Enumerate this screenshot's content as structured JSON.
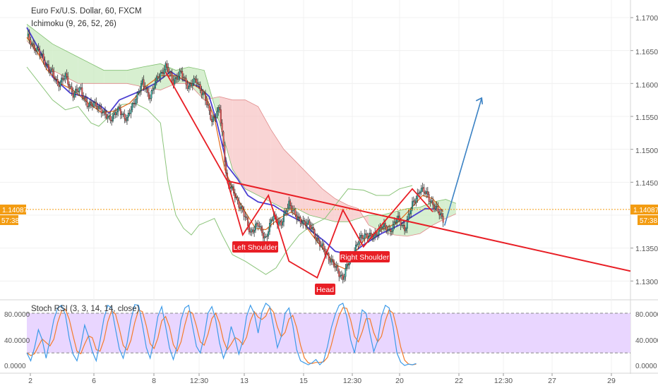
{
  "header": {
    "title": "Euro Fx/U.S. Dollar, 60, FXCM",
    "indicator": "Ichimoku (9, 26, 52, 26)"
  },
  "price_axis": {
    "ticks": [
      "1.17000",
      "1.16500",
      "1.16000",
      "1.15500",
      "1.15000",
      "1.14500",
      "1.13500",
      "1.13000"
    ],
    "current_price": "1.14087",
    "countdown": "57:38"
  },
  "x_axis": {
    "ticks": [
      "2",
      "6",
      "8",
      "12:30",
      "13",
      "15",
      "12:30",
      "20",
      "22",
      "12:30",
      "27",
      "29"
    ]
  },
  "annotations": {
    "left_shoulder": "Left Shoulder",
    "head": "Head",
    "right_shoulder": "Right Shoulder"
  },
  "oscillator": {
    "title": "Stoch RSI (3, 3, 14, 14, close)",
    "ticks": [
      "80.0000",
      "40.0000",
      "0.0000"
    ]
  },
  "colors": {
    "bull": "#26a69a",
    "bear": "#ef5350",
    "trend": "#e81e25",
    "arrow": "#3b82c4",
    "kijun": "#4b3fd1",
    "tenkan": "#e36a1a",
    "cloud_bear": "#f7c5c5",
    "cloud_bull": "#c9e9c0",
    "price_line": "#f39c12",
    "band": "#e9d6ff"
  },
  "chart_data": {
    "type": "candlestick",
    "instrument": "Euro Fx/U.S. Dollar",
    "timeframe": "60",
    "source": "FXCM",
    "ylim": [
      1.1275,
      1.1725
    ],
    "close_path": [
      [
        0,
        1.1672
      ],
      [
        6,
        1.1655
      ],
      [
        12,
        1.164
      ],
      [
        18,
        1.162
      ],
      [
        24,
        1.16
      ],
      [
        30,
        1.161
      ],
      [
        36,
        1.1585
      ],
      [
        42,
        1.159
      ],
      [
        48,
        1.1565
      ],
      [
        54,
        1.157
      ],
      [
        60,
        1.1552
      ],
      [
        66,
        1.1548
      ],
      [
        72,
        1.156
      ],
      [
        78,
        1.1545
      ],
      [
        84,
        1.1575
      ],
      [
        90,
        1.16
      ],
      [
        96,
        1.158
      ],
      [
        102,
        1.161
      ],
      [
        108,
        1.1625
      ],
      [
        114,
        1.1605
      ],
      [
        120,
        1.1615
      ],
      [
        126,
        1.1595
      ],
      [
        132,
        1.1605
      ],
      [
        138,
        1.158
      ],
      [
        144,
        1.1545
      ],
      [
        150,
        1.156
      ],
      [
        156,
        1.145
      ],
      [
        162,
        1.143
      ],
      [
        168,
        1.1405
      ],
      [
        174,
        1.1375
      ],
      [
        180,
        1.1385
      ],
      [
        186,
        1.1365
      ],
      [
        192,
        1.14
      ],
      [
        198,
        1.1385
      ],
      [
        204,
        1.142
      ],
      [
        210,
        1.1395
      ],
      [
        216,
        1.139
      ],
      [
        222,
        1.138
      ],
      [
        228,
        1.1355
      ],
      [
        234,
        1.134
      ],
      [
        240,
        1.132
      ],
      [
        246,
        1.1305
      ],
      [
        252,
        1.1335
      ],
      [
        258,
        1.136
      ],
      [
        264,
        1.1372
      ],
      [
        270,
        1.1365
      ],
      [
        276,
        1.1385
      ],
      [
        282,
        1.1375
      ],
      [
        288,
        1.1395
      ],
      [
        294,
        1.138
      ],
      [
        300,
        1.1415
      ],
      [
        306,
        1.144
      ],
      [
        312,
        1.143
      ],
      [
        318,
        1.141
      ],
      [
        324,
        1.1395
      ]
    ],
    "kijun_path": [
      [
        0,
        1.1685
      ],
      [
        10,
        1.165
      ],
      [
        20,
        1.161
      ],
      [
        34,
        1.1585
      ],
      [
        46,
        1.158
      ],
      [
        58,
        1.1565
      ],
      [
        64,
        1.1555
      ],
      [
        72,
        1.1575
      ],
      [
        90,
        1.159
      ],
      [
        100,
        1.16
      ],
      [
        112,
        1.1618
      ],
      [
        122,
        1.1605
      ],
      [
        134,
        1.1595
      ],
      [
        142,
        1.158
      ],
      [
        148,
        1.154
      ],
      [
        156,
        1.1475
      ],
      [
        164,
        1.1455
      ],
      [
        172,
        1.143
      ],
      [
        180,
        1.142
      ],
      [
        192,
        1.1415
      ],
      [
        204,
        1.14
      ],
      [
        214,
        1.139
      ],
      [
        222,
        1.1375
      ],
      [
        232,
        1.136
      ],
      [
        240,
        1.1345
      ],
      [
        252,
        1.134
      ],
      [
        262,
        1.1355
      ],
      [
        276,
        1.1372
      ],
      [
        290,
        1.1385
      ],
      [
        300,
        1.1398
      ],
      [
        310,
        1.141
      ],
      [
        324,
        1.1408
      ]
    ],
    "tenkan_path": [
      [
        0,
        1.167
      ],
      [
        8,
        1.1648
      ],
      [
        16,
        1.162
      ],
      [
        26,
        1.16
      ],
      [
        36,
        1.159
      ],
      [
        48,
        1.157
      ],
      [
        58,
        1.1556
      ],
      [
        68,
        1.1558
      ],
      [
        80,
        1.157
      ],
      [
        92,
        1.1595
      ],
      [
        104,
        1.1612
      ],
      [
        116,
        1.1612
      ],
      [
        128,
        1.16
      ],
      [
        138,
        1.1588
      ],
      [
        146,
        1.1548
      ],
      [
        154,
        1.147
      ],
      [
        162,
        1.1432
      ],
      [
        170,
        1.1405
      ],
      [
        178,
        1.138
      ],
      [
        186,
        1.1378
      ],
      [
        196,
        1.1395
      ],
      [
        206,
        1.1405
      ],
      [
        214,
        1.1392
      ],
      [
        222,
        1.137
      ],
      [
        232,
        1.1345
      ],
      [
        240,
        1.1325
      ],
      [
        248,
        1.1318
      ],
      [
        256,
        1.1345
      ],
      [
        264,
        1.1366
      ],
      [
        276,
        1.1378
      ],
      [
        288,
        1.1388
      ],
      [
        298,
        1.1408
      ],
      [
        308,
        1.143
      ],
      [
        316,
        1.1425
      ],
      [
        324,
        1.1405
      ]
    ],
    "chikou_path": [
      [
        0,
        1.1625
      ],
      [
        10,
        1.16
      ],
      [
        20,
        1.1575
      ],
      [
        30,
        1.156
      ],
      [
        40,
        1.1565
      ],
      [
        50,
        1.154
      ],
      [
        56,
        1.1535
      ],
      [
        64,
        1.155
      ],
      [
        74,
        1.1568
      ],
      [
        84,
        1.157
      ],
      [
        94,
        1.156
      ],
      [
        104,
        1.154
      ],
      [
        110,
        1.145
      ],
      [
        116,
        1.14
      ],
      [
        122,
        1.138
      ],
      [
        128,
        1.137
      ],
      [
        134,
        1.1385
      ],
      [
        140,
        1.139
      ],
      [
        146,
        1.1395
      ],
      [
        152,
        1.137
      ],
      [
        160,
        1.134
      ],
      [
        170,
        1.133
      ],
      [
        178,
        1.132
      ],
      [
        186,
        1.131
      ],
      [
        194,
        1.132
      ],
      [
        202,
        1.1345
      ],
      [
        212,
        1.137
      ],
      [
        222,
        1.1385
      ],
      [
        232,
        1.1395
      ],
      [
        242,
        1.142
      ],
      [
        250,
        1.144
      ],
      [
        262,
        1.1438
      ],
      [
        272,
        1.143
      ],
      [
        282,
        1.143
      ],
      [
        290,
        1.144
      ],
      [
        300,
        1.1445
      ]
    ],
    "cloud": [
      [
        0,
        1.169,
        1.1665
      ],
      [
        20,
        1.166,
        1.162
      ],
      [
        40,
        1.164,
        1.16
      ],
      [
        60,
        1.162,
        1.16
      ],
      [
        78,
        1.162,
        1.16
      ],
      [
        90,
        1.1625,
        1.1595
      ],
      [
        104,
        1.163,
        1.159
      ],
      [
        116,
        1.162,
        1.16
      ],
      [
        126,
        1.1625,
        1.16
      ],
      [
        138,
        1.162,
        1.1575
      ],
      [
        150,
        1.154,
        1.158
      ],
      [
        160,
        1.147,
        1.1575
      ],
      [
        170,
        1.144,
        1.1575
      ],
      [
        180,
        1.143,
        1.1565
      ],
      [
        190,
        1.142,
        1.153
      ],
      [
        200,
        1.141,
        1.15
      ],
      [
        210,
        1.141,
        1.148
      ],
      [
        220,
        1.14,
        1.146
      ],
      [
        230,
        1.1395,
        1.144
      ],
      [
        240,
        1.139,
        1.1425
      ],
      [
        250,
        1.139,
        1.1415
      ],
      [
        258,
        1.1395,
        1.141
      ],
      [
        266,
        1.14,
        1.1385
      ],
      [
        276,
        1.14,
        1.1375
      ],
      [
        286,
        1.1405,
        1.137
      ],
      [
        296,
        1.141,
        1.1368
      ],
      [
        306,
        1.1412,
        1.1372
      ],
      [
        316,
        1.142,
        1.1385
      ],
      [
        326,
        1.1424,
        1.1395
      ],
      [
        334,
        1.1418,
        1.1402
      ]
    ],
    "neckline": [
      [
        156,
        1.1452
      ],
      [
        360,
        1.1315
      ]
    ],
    "pattern_path": [
      [
        156,
        1.1452
      ],
      [
        168,
        1.137
      ],
      [
        188,
        1.143
      ],
      [
        204,
        1.133
      ],
      [
        226,
        1.1305
      ],
      [
        246,
        1.1408
      ],
      [
        262,
        1.1352
      ],
      [
        276,
        1.1385
      ],
      [
        300,
        1.144
      ],
      [
        316,
        1.1405
      ]
    ],
    "projection": [
      [
        324,
        1.1395
      ],
      [
        354,
        1.1578
      ]
    ],
    "current_price": 1.14087,
    "stoch_rsi": {
      "ylim": [
        -8,
        100
      ],
      "bands": [
        20,
        80
      ],
      "k": [
        [
          0,
          20
        ],
        [
          3,
          8
        ],
        [
          6,
          28
        ],
        [
          9,
          55
        ],
        [
          12,
          40
        ],
        [
          15,
          12
        ],
        [
          18,
          40
        ],
        [
          21,
          70
        ],
        [
          24,
          88
        ],
        [
          27,
          92
        ],
        [
          30,
          78
        ],
        [
          33,
          42
        ],
        [
          36,
          18
        ],
        [
          39,
          8
        ],
        [
          42,
          30
        ],
        [
          45,
          62
        ],
        [
          48,
          45
        ],
        [
          51,
          22
        ],
        [
          54,
          8
        ],
        [
          57,
          38
        ],
        [
          60,
          72
        ],
        [
          63,
          92
        ],
        [
          66,
          88
        ],
        [
          69,
          56
        ],
        [
          72,
          26
        ],
        [
          75,
          12
        ],
        [
          78,
          35
        ],
        [
          81,
          70
        ],
        [
          84,
          93
        ],
        [
          87,
          92
        ],
        [
          90,
          62
        ],
        [
          93,
          28
        ],
        [
          96,
          12
        ],
        [
          99,
          40
        ],
        [
          102,
          75
        ],
        [
          105,
          90
        ],
        [
          108,
          60
        ],
        [
          111,
          28
        ],
        [
          114,
          10
        ],
        [
          117,
          30
        ],
        [
          120,
          70
        ],
        [
          123,
          88
        ],
        [
          126,
          92
        ],
        [
          129,
          60
        ],
        [
          132,
          30
        ],
        [
          135,
          20
        ],
        [
          138,
          45
        ],
        [
          141,
          80
        ],
        [
          144,
          90
        ],
        [
          147,
          70
        ],
        [
          150,
          35
        ],
        [
          153,
          12
        ],
        [
          156,
          28
        ],
        [
          159,
          60
        ],
        [
          162,
          42
        ],
        [
          165,
          18
        ],
        [
          168,
          38
        ],
        [
          171,
          75
        ],
        [
          174,
          92
        ],
        [
          177,
          80
        ],
        [
          180,
          50
        ],
        [
          183,
          82
        ],
        [
          186,
          95
        ],
        [
          189,
          90
        ],
        [
          192,
          60
        ],
        [
          195,
          28
        ],
        [
          198,
          45
        ],
        [
          201,
          80
        ],
        [
          204,
          88
        ],
        [
          207,
          62
        ],
        [
          210,
          25
        ],
        [
          213,
          8
        ],
        [
          216,
          5
        ],
        [
          219,
          2
        ],
        [
          222,
          5
        ],
        [
          225,
          10
        ],
        [
          228,
          2
        ],
        [
          231,
          8
        ],
        [
          234,
          30
        ],
        [
          237,
          58
        ],
        [
          240,
          78
        ],
        [
          243,
          92
        ],
        [
          246,
          95
        ],
        [
          249,
          75
        ],
        [
          252,
          40
        ],
        [
          255,
          20
        ],
        [
          258,
          50
        ],
        [
          261,
          85
        ],
        [
          264,
          80
        ],
        [
          267,
          50
        ],
        [
          270,
          22
        ],
        [
          273,
          38
        ],
        [
          276,
          75
        ],
        [
          279,
          92
        ],
        [
          282,
          88
        ],
        [
          285,
          60
        ],
        [
          288,
          20
        ],
        [
          291,
          6
        ],
        [
          294,
          1
        ],
        [
          297,
          3
        ],
        [
          300,
          2
        ],
        [
          303,
          4
        ]
      ]
    }
  }
}
